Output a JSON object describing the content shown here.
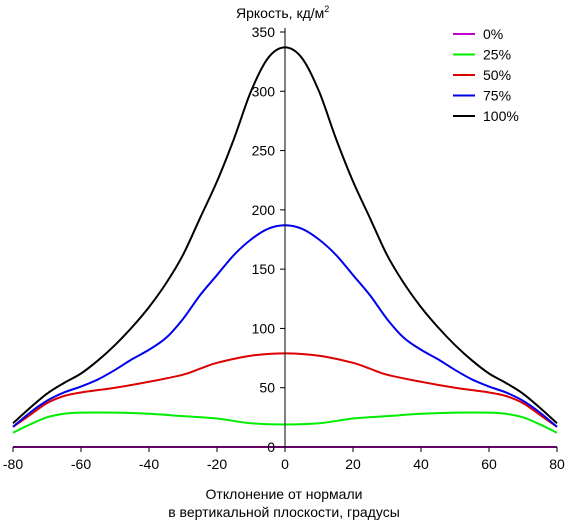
{
  "chart_data": {
    "type": "line",
    "ylabel": "Яркость, кд/м",
    "ylabel_sup": "2",
    "xlabel_line1": "Отклонение от нормали",
    "xlabel_line2": "в вертикальной плоскости, градусы",
    "xlim": [
      -80,
      80
    ],
    "ylim": [
      0,
      350
    ],
    "x_ticks": [
      -80,
      -60,
      -40,
      -20,
      0,
      20,
      40,
      60,
      80
    ],
    "y_ticks": [
      0,
      50,
      100,
      150,
      200,
      250,
      300,
      350
    ],
    "legend_position": "top-right",
    "grid": false,
    "series": [
      {
        "name": "0%",
        "color": "#cc00cc",
        "points": [
          [
            -80,
            0
          ],
          [
            80,
            0
          ]
        ]
      },
      {
        "name": "25%",
        "color": "#00ee00",
        "points": [
          [
            -80,
            12
          ],
          [
            -75,
            19
          ],
          [
            -70,
            25
          ],
          [
            -65,
            28
          ],
          [
            -60,
            29
          ],
          [
            -50,
            29
          ],
          [
            -40,
            28
          ],
          [
            -30,
            26
          ],
          [
            -20,
            24
          ],
          [
            -10,
            20
          ],
          [
            0,
            19
          ],
          [
            10,
            20
          ],
          [
            20,
            24
          ],
          [
            30,
            26
          ],
          [
            40,
            28
          ],
          [
            50,
            29
          ],
          [
            60,
            29
          ],
          [
            65,
            28
          ],
          [
            70,
            25
          ],
          [
            75,
            19
          ],
          [
            80,
            12
          ]
        ]
      },
      {
        "name": "50%",
        "color": "#dd0000",
        "points": [
          [
            -80,
            17
          ],
          [
            -75,
            27
          ],
          [
            -70,
            37
          ],
          [
            -65,
            43
          ],
          [
            -60,
            46
          ],
          [
            -50,
            50
          ],
          [
            -40,
            55
          ],
          [
            -30,
            61
          ],
          [
            -25,
            66
          ],
          [
            -20,
            71
          ],
          [
            -10,
            77
          ],
          [
            0,
            79
          ],
          [
            10,
            77
          ],
          [
            20,
            71
          ],
          [
            25,
            66
          ],
          [
            30,
            61
          ],
          [
            40,
            55
          ],
          [
            50,
            50
          ],
          [
            60,
            46
          ],
          [
            65,
            43
          ],
          [
            70,
            37
          ],
          [
            75,
            27
          ],
          [
            80,
            17
          ]
        ]
      },
      {
        "name": "75%",
        "color": "#0000ee",
        "points": [
          [
            -80,
            17
          ],
          [
            -75,
            29
          ],
          [
            -70,
            39
          ],
          [
            -65,
            46
          ],
          [
            -60,
            51
          ],
          [
            -55,
            57
          ],
          [
            -50,
            65
          ],
          [
            -45,
            74
          ],
          [
            -40,
            82
          ],
          [
            -35,
            92
          ],
          [
            -30,
            108
          ],
          [
            -25,
            128
          ],
          [
            -20,
            145
          ],
          [
            -15,
            162
          ],
          [
            -10,
            175
          ],
          [
            -5,
            184
          ],
          [
            0,
            187
          ],
          [
            5,
            184
          ],
          [
            10,
            175
          ],
          [
            15,
            162
          ],
          [
            20,
            145
          ],
          [
            25,
            128
          ],
          [
            30,
            108
          ],
          [
            35,
            92
          ],
          [
            40,
            82
          ],
          [
            45,
            74
          ],
          [
            50,
            65
          ],
          [
            55,
            57
          ],
          [
            60,
            51
          ],
          [
            65,
            46
          ],
          [
            70,
            39
          ],
          [
            75,
            29
          ],
          [
            80,
            17
          ]
        ]
      },
      {
        "name": "100%",
        "color": "#000000",
        "points": [
          [
            -80,
            20
          ],
          [
            -75,
            33
          ],
          [
            -70,
            45
          ],
          [
            -65,
            54
          ],
          [
            -60,
            62
          ],
          [
            -55,
            73
          ],
          [
            -50,
            86
          ],
          [
            -45,
            101
          ],
          [
            -40,
            118
          ],
          [
            -35,
            138
          ],
          [
            -30,
            162
          ],
          [
            -25,
            193
          ],
          [
            -20,
            224
          ],
          [
            -15,
            260
          ],
          [
            -10,
            300
          ],
          [
            -5,
            328
          ],
          [
            0,
            337
          ],
          [
            5,
            328
          ],
          [
            10,
            300
          ],
          [
            15,
            260
          ],
          [
            20,
            224
          ],
          [
            25,
            193
          ],
          [
            30,
            162
          ],
          [
            35,
            138
          ],
          [
            40,
            118
          ],
          [
            45,
            101
          ],
          [
            50,
            86
          ],
          [
            55,
            73
          ],
          [
            60,
            62
          ],
          [
            65,
            54
          ],
          [
            70,
            45
          ],
          [
            75,
            33
          ],
          [
            80,
            20
          ]
        ]
      }
    ]
  }
}
